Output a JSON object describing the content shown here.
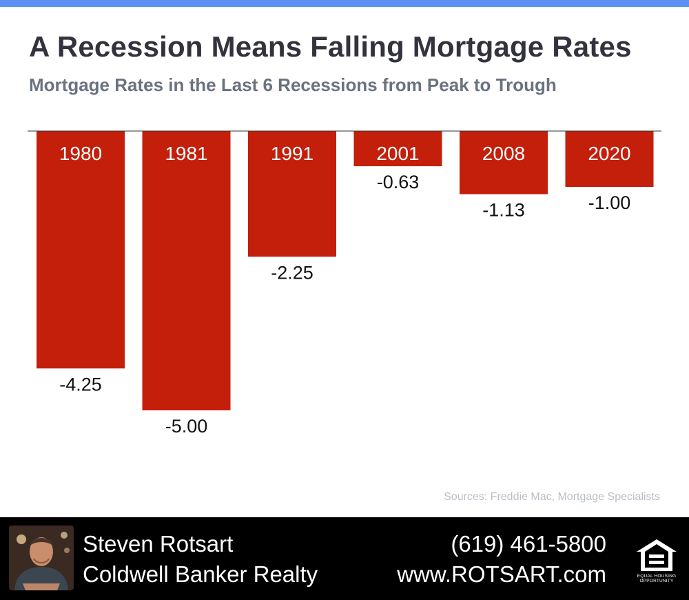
{
  "colors": {
    "accent_bar": "#5b8ff0",
    "bar_fill": "#c41f0b",
    "title": "#33333f",
    "subtitle": "#6a7280",
    "footer_bg": "#000000"
  },
  "header": {
    "title": "A Recession Means Falling Mortgage Rates",
    "subtitle": "Mortgage Rates in the Last 6 Recessions from Peak to Trough"
  },
  "chart_data": {
    "type": "bar",
    "orientation": "vertical-downward",
    "categories": [
      "1980",
      "1981",
      "1991",
      "2001",
      "2008",
      "2020"
    ],
    "values": [
      -4.25,
      -5.0,
      -2.25,
      -0.63,
      -1.13,
      -1.0
    ],
    "value_labels": [
      "-4.25",
      "-5.00",
      "-2.25",
      "-0.63",
      "-1.13",
      "-1.00"
    ],
    "ylim": [
      -5,
      0
    ],
    "grid": false,
    "legend": "none"
  },
  "sources": "Sources: Freddie Mac, Mortgage Specialists",
  "footer": {
    "name": "Steven Rotsart",
    "company": "Coldwell Banker Realty",
    "phone": "(619) 461-5800",
    "website": "www.ROTSART.com",
    "avatar_icon": "agent-photo",
    "logo_icon": "equal-housing-opportunity-icon",
    "logo_label": "EQUAL HOUSING OPPORTUNITY"
  }
}
